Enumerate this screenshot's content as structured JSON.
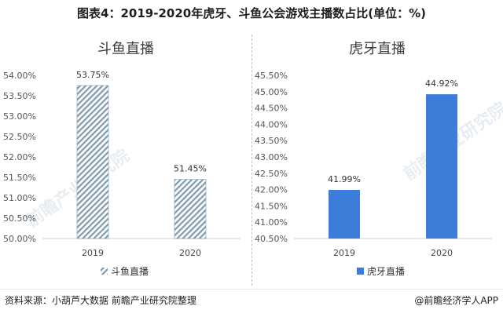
{
  "title": "图表4：2019-2020年虎牙、斗鱼公会游戏主播数占比(单位：%)",
  "watermark_text": "前瞻产业研究院",
  "footer": {
    "source": "资料来源：小葫芦大数据 前瞻产业研究院整理",
    "brand": "@前瞻经济学人APP"
  },
  "chart_data": [
    {
      "type": "bar",
      "title": "斗鱼直播",
      "categories": [
        "2019",
        "2020"
      ],
      "series": [
        {
          "name": "斗鱼直播",
          "values": [
            53.75,
            51.45
          ]
        }
      ],
      "data_labels": [
        "53.75%",
        "51.45%"
      ],
      "ylim": [
        50.0,
        54.0
      ],
      "yticks": [
        "50.00%",
        "50.50%",
        "51.00%",
        "51.50%",
        "52.00%",
        "52.50%",
        "53.00%",
        "53.50%",
        "54.00%"
      ],
      "bar_style": "diagonal-hatch",
      "color": "#7f9aae",
      "legend": "bottom"
    },
    {
      "type": "bar",
      "title": "虎牙直播",
      "categories": [
        "2019",
        "2020"
      ],
      "series": [
        {
          "name": "虎牙直播",
          "values": [
            41.99,
            44.92
          ]
        }
      ],
      "data_labels": [
        "41.99%",
        "44.92%"
      ],
      "ylim": [
        40.5,
        45.5
      ],
      "yticks": [
        "40.50%",
        "41.00%",
        "41.50%",
        "42.00%",
        "42.50%",
        "43.00%",
        "43.50%",
        "44.00%",
        "44.50%",
        "45.00%",
        "45.50%"
      ],
      "bar_style": "solid",
      "color": "#3b7dd8",
      "legend": "bottom"
    }
  ]
}
